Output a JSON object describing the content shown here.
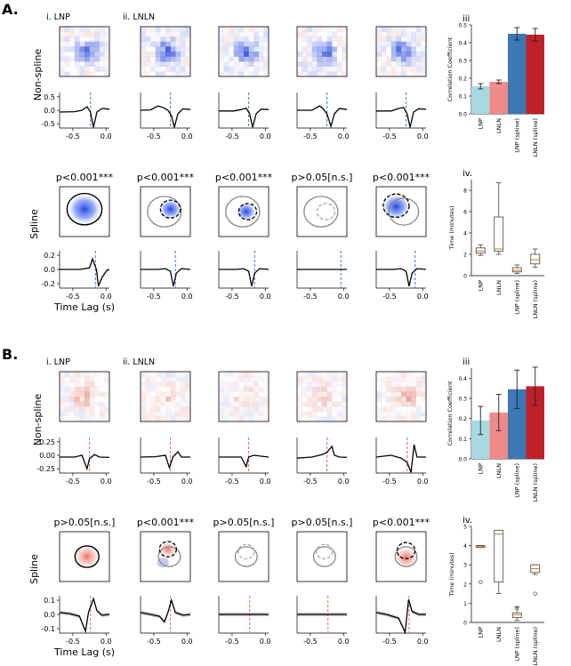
{
  "panels": [
    {
      "label": "A.",
      "col_labels": [
        "i. LNP",
        "ii. LNLN"
      ],
      "row_labels": [
        "Non-spline",
        "Spline"
      ],
      "stimulus_color": "#1f4fd6",
      "line_color": "#4a86c8",
      "significance": [
        "p<0.001***",
        "p<0.001***",
        "p<0.001***",
        "p>0.05[n.s.]",
        "p<0.001***"
      ],
      "nonspline_axis": {
        "xticks": [
          "-0.5",
          "0.0"
        ],
        "yticks": [
          "0.5",
          "0.0",
          "-0.5"
        ]
      },
      "spline_axis": {
        "xticks": [
          "-0.5",
          "0.0"
        ],
        "yticks": [
          "0.2",
          "0.0",
          "-0.2"
        ]
      },
      "xlabel": "Time Lag (s)",
      "bar_chart": {
        "label": "iii",
        "ylabel": "Correlation Coefficient",
        "yticks": [
          "0.0",
          "0.1",
          "0.2",
          "0.3",
          "0.4",
          "0.5"
        ],
        "categories": [
          "LNP",
          "LNLN",
          "LNP (spline)",
          "LNLN (spline)"
        ],
        "values": [
          0.155,
          0.18,
          0.45,
          0.445
        ],
        "errors": [
          0.015,
          0.01,
          0.035,
          0.035
        ],
        "colors": [
          "#a8d8e2",
          "#f08a8a",
          "#3b78b4",
          "#c02028"
        ]
      },
      "box_chart": {
        "label": "iv.",
        "ylabel": "Time (minutes)",
        "yticks": [
          "0",
          "2",
          "4",
          "6",
          "8"
        ],
        "categories": [
          "LNP",
          "LNLN",
          "LNP (spline)",
          "LNLN (spline)"
        ]
      }
    },
    {
      "label": "B.",
      "col_labels": [
        "i. LNP",
        "ii. LNLN"
      ],
      "row_labels": [
        "Non-spline",
        "Spline"
      ],
      "stimulus_color": "#e0503a",
      "line_color": "#e8705a",
      "significance": [
        "p>0.05[n.s.]",
        "p<0.001***",
        "p>0.05[n.s.]",
        "p>0.05[n.s.]",
        "p<0.001***"
      ],
      "nonspline_axis": {
        "xticks": [
          "-0.5",
          "0.0"
        ],
        "yticks": [
          "0.25",
          "0.00",
          "-0.25"
        ]
      },
      "spline_axis": {
        "xticks": [
          "-0.5",
          "0.0"
        ],
        "yticks": [
          "0.1",
          "0.0",
          "-0.1"
        ]
      },
      "xlabel": "Time Lag (s)",
      "bar_chart": {
        "label": "iii",
        "ylabel": "Correlation Coefficient",
        "yticks": [
          "0.0",
          "0.1",
          "0.2",
          "0.3",
          "0.4"
        ],
        "categories": [
          "LNP",
          "LNLN",
          "LNP (spline)",
          "LNLN (spline)"
        ],
        "values": [
          0.19,
          0.23,
          0.345,
          0.36
        ],
        "errors": [
          0.07,
          0.09,
          0.095,
          0.095
        ],
        "colors": [
          "#a8d8e2",
          "#f08a8a",
          "#3b78b4",
          "#c02028"
        ]
      },
      "box_chart": {
        "label": "iv.",
        "ylabel": "Time (minutes)",
        "yticks": [
          "0",
          "1",
          "2",
          "3",
          "4",
          "5"
        ],
        "categories": [
          "LNP",
          "LNLN",
          "LNP (spline)",
          "LNLN (spline)"
        ]
      }
    }
  ],
  "chart_data": [
    {
      "type": "bar",
      "categories": [
        "LNP",
        "LNLN",
        "LNP (spline)",
        "LNLN (spline)"
      ],
      "values": [
        0.155,
        0.18,
        0.45,
        0.445
      ],
      "ylabel": "Correlation Coefficient",
      "ylim": [
        0,
        0.5
      ]
    },
    {
      "type": "box",
      "categories": [
        "LNP",
        "LNLN",
        "LNP (spline)",
        "LNLN (spline)"
      ],
      "boxes": [
        {
          "min": 1.9,
          "q1": 2.1,
          "median": 2.3,
          "q3": 2.6,
          "max": 2.9
        },
        {
          "min": 2.0,
          "q1": 2.3,
          "median": 2.5,
          "q3": 5.5,
          "max": 8.7
        },
        {
          "min": 0.2,
          "q1": 0.35,
          "median": 0.5,
          "q3": 0.75,
          "max": 1.0
        },
        {
          "min": 0.8,
          "q1": 1.1,
          "median": 1.5,
          "q3": 2.0,
          "max": 2.5
        }
      ],
      "ylabel": "Time (minutes)",
      "ylim": [
        0,
        9
      ]
    },
    {
      "type": "bar",
      "categories": [
        "LNP",
        "LNLN",
        "LNP (spline)",
        "LNLN (spline)"
      ],
      "values": [
        0.19,
        0.23,
        0.345,
        0.36
      ],
      "ylabel": "Correlation Coefficient",
      "ylim": [
        0,
        0.45
      ]
    },
    {
      "type": "box",
      "categories": [
        "LNP",
        "LNLN",
        "LNP (spline)",
        "LNLN (spline)"
      ],
      "boxes": [
        {
          "min": 3.9,
          "q1": 3.9,
          "median": 3.95,
          "q3": 4.0,
          "max": 4.0,
          "outliers": [
            2.1
          ]
        },
        {
          "min": 1.5,
          "q1": 2.1,
          "median": 4.6,
          "q3": 4.8,
          "max": 4.8
        },
        {
          "min": 0.1,
          "q1": 0.25,
          "median": 0.4,
          "q3": 0.5,
          "max": 0.8,
          "outliers": [
            0.75
          ]
        },
        {
          "min": 2.5,
          "q1": 2.6,
          "median": 2.8,
          "q3": 3.0,
          "max": 3.0,
          "outliers": [
            1.5
          ]
        }
      ],
      "ylabel": "Time (minutes)",
      "ylim": [
        0,
        5
      ]
    }
  ]
}
